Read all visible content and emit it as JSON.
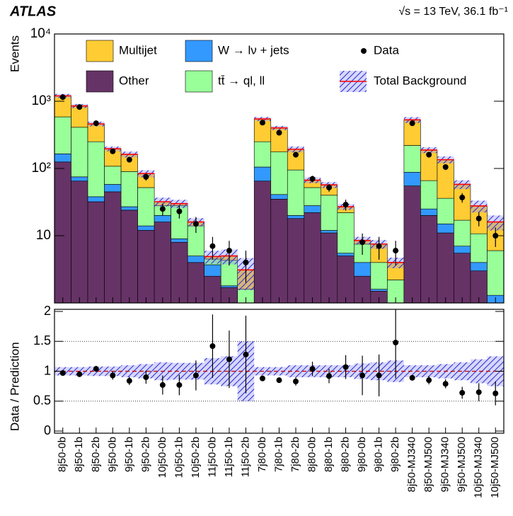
{
  "chart_data": [
    {
      "type": "stacked-bar",
      "title": "ATLAS",
      "subtitle": "√s = 13 TeV, 36.1 fb⁻¹",
      "y_label": "Events",
      "log_scale": true,
      "categories": [
        "8j50-0b",
        "8j50-1b",
        "8j50-2b",
        "9j50-0b",
        "9j50-1b",
        "9j50-2b",
        "10j50-0b",
        "10j50-1b",
        "10j50-2b",
        "11j50-0b",
        "11j50-1b",
        "11j50-2b",
        "7j80-0b",
        "7j80-1b",
        "7j80-2b",
        "8j80-0b",
        "8j80-1b",
        "8j80-2b",
        "9j80-0b",
        "9j80-1b",
        "9j80-2b",
        "8j50-MJ340",
        "8j50-MJ500",
        "9j50-MJ340",
        "9j50-MJ500",
        "10j50-MJ340",
        "10j50-MJ500"
      ],
      "series": [
        {
          "name": "Other",
          "color": "#663366",
          "values": [
            125,
            65,
            32,
            45,
            24,
            12,
            16,
            8,
            4,
            2.5,
            1.7,
            0.8,
            65,
            35,
            18,
            22,
            11,
            5,
            2.5,
            1.5,
            0.6,
            55,
            20,
            11,
            5.5,
            3,
            1
          ]
        },
        {
          "name": "W → lν + jets",
          "color": "#3399ff",
          "values": [
            40,
            10,
            6,
            13,
            3,
            2,
            4,
            1,
            1,
            1.2,
            0.1,
            0.2,
            40,
            6,
            2,
            6,
            1,
            0.5,
            1.5,
            0.1,
            0.1,
            33,
            5,
            4,
            1.5,
            1,
            0.3
          ]
        },
        {
          "name": "tt̄ → ql, ll",
          "color": "#99ff99",
          "values": [
            420,
            335,
            212,
            50,
            63,
            38,
            8,
            19,
            9,
            0.8,
            2.5,
            0.6,
            145,
            135,
            75,
            24,
            28,
            16.5,
            3.5,
            2.4,
            1.5,
            132,
            41,
            21,
            10,
            6.7,
            4.7
          ]
        },
        {
          "name": "Multijet",
          "color": "#ffcc33",
          "values": [
            615,
            440,
            210,
            88,
            72,
            32,
            4,
            2,
            2,
            0.4,
            0.7,
            1.5,
            295,
            225,
            98,
            15,
            17,
            5,
            1,
            3.5,
            1.8,
            308,
            122,
            99,
            41,
            17,
            10
          ]
        }
      ],
      "data": {
        "name": "Data",
        "color": "#000000",
        "values": [
          1150,
          820,
          470,
          180,
          135,
          75,
          25,
          23,
          15,
          7,
          6,
          4,
          480,
          340,
          160,
          70,
          52,
          29,
          8,
          7,
          6,
          470,
          160,
          105,
          37,
          18,
          10
        ],
        "errors": [
          34,
          29,
          22,
          13,
          12,
          9,
          5,
          5,
          4,
          2.6,
          2.4,
          2,
          22,
          18,
          13,
          8,
          7,
          5.4,
          2.8,
          2.6,
          2.4,
          22,
          13,
          10,
          6,
          4.2,
          3.2
        ]
      },
      "total": {
        "name": "Total Background",
        "color": "#ff0000"
      },
      "ylim": [
        1,
        10000
      ],
      "yticks": [
        10,
        {
          "value": 100,
          "label": "10²"
        },
        {
          "value": 1000,
          "label": "10³"
        },
        {
          "value": 10000,
          "label": "10⁴"
        }
      ]
    },
    {
      "type": "ratio",
      "y_label": "Data / Prediction",
      "values": [
        0.97,
        0.95,
        1.04,
        0.93,
        0.84,
        0.9,
        0.77,
        0.77,
        0.93,
        1.42,
        1.2,
        1.28,
        0.88,
        0.85,
        0.83,
        1.04,
        0.92,
        1.07,
        0.93,
        0.93,
        1.48,
        0.89,
        0.85,
        0.79,
        0.64,
        0.65,
        0.63
      ],
      "errors": [
        0.03,
        0.035,
        0.05,
        0.07,
        0.07,
        0.11,
        0.16,
        0.17,
        0.25,
        0.53,
        0.48,
        0.65,
        0.04,
        0.045,
        0.07,
        0.12,
        0.12,
        0.2,
        0.33,
        0.35,
        0.6,
        0.04,
        0.07,
        0.075,
        0.1,
        0.15,
        0.2
      ],
      "band": [
        0.07,
        0.07,
        0.08,
        0.08,
        0.1,
        0.12,
        0.15,
        0.14,
        0.14,
        0.22,
        0.25,
        0.5,
        0.07,
        0.07,
        0.1,
        0.1,
        0.1,
        0.1,
        0.13,
        0.15,
        0.18,
        0.1,
        0.1,
        0.12,
        0.15,
        0.2,
        0.25
      ],
      "reference": 1,
      "ylim": [
        0,
        2
      ],
      "yticks": [
        0,
        0.5,
        1,
        1.5,
        2
      ]
    }
  ]
}
